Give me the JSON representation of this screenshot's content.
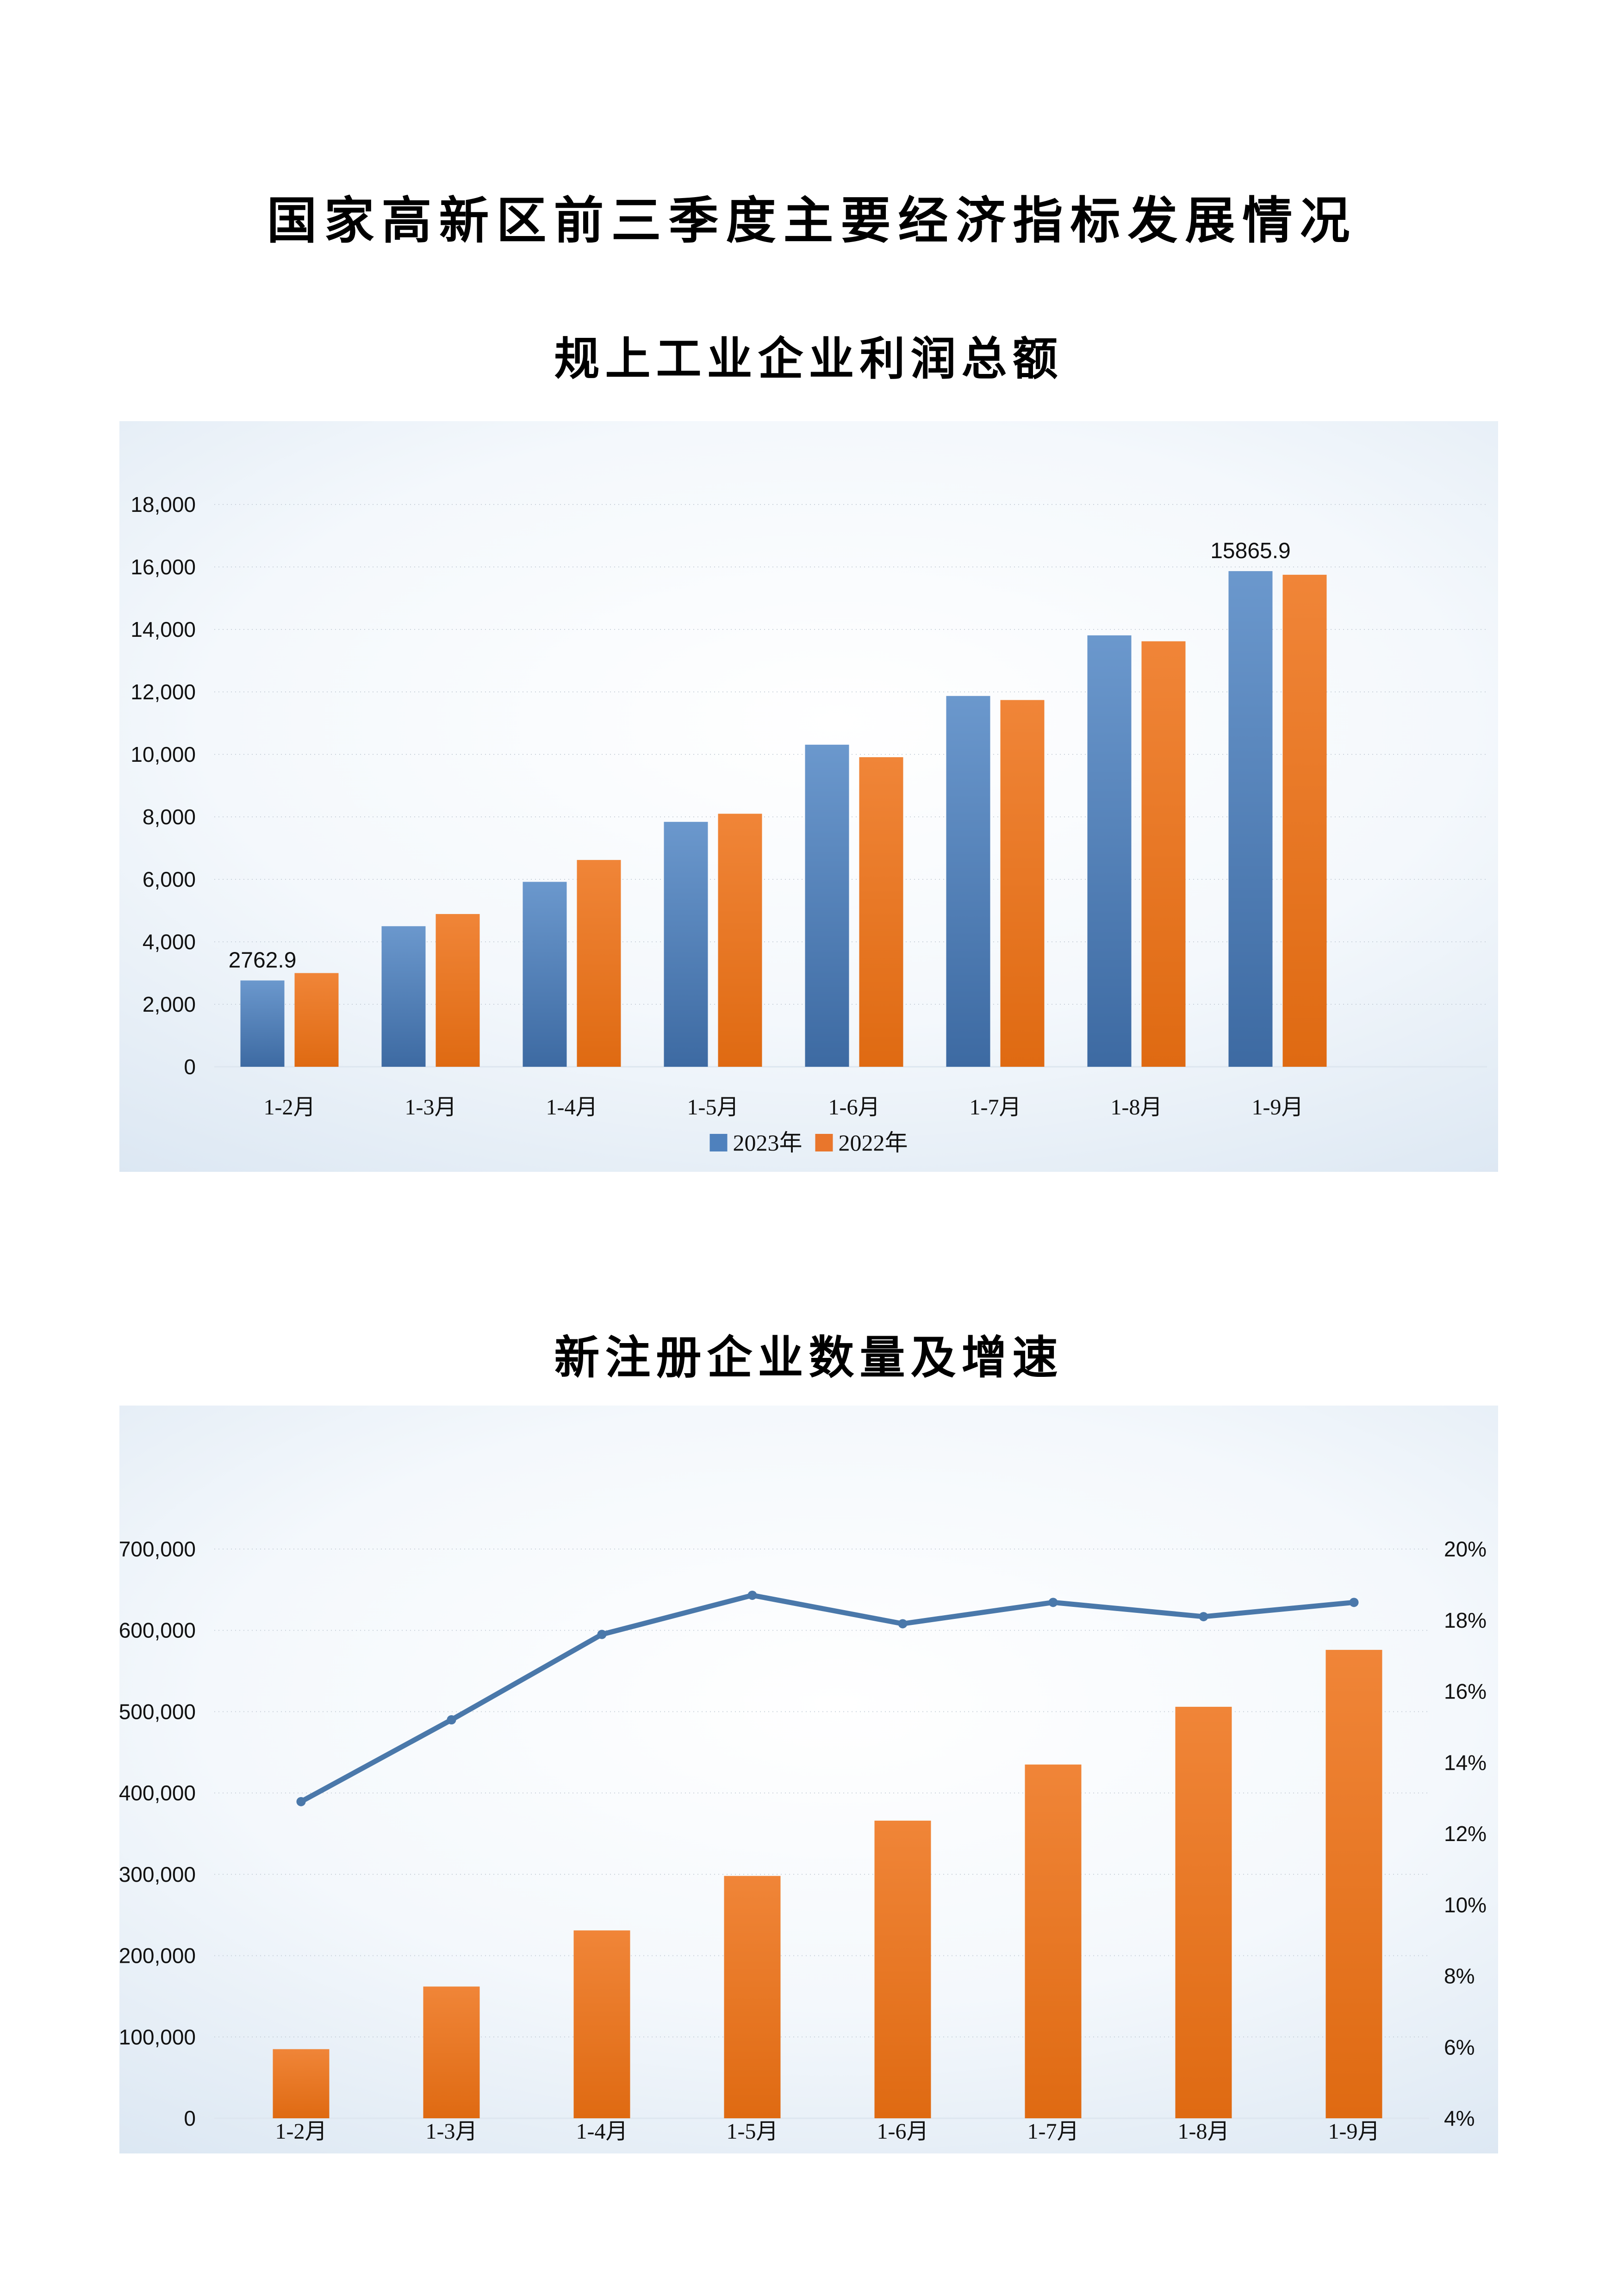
{
  "page": {
    "title": "国家高新区前三季度主要经济指标发展情况"
  },
  "chart_data": [
    {
      "type": "bar",
      "title": "规上工业企业利润总额",
      "categories": [
        "1-2月",
        "1-3月",
        "1-4月",
        "1-5月",
        "1-6月",
        "1-7月",
        "1-8月",
        "1-9月"
      ],
      "series": [
        {
          "name": "2023年",
          "values": [
            2762.9,
            4500,
            5920,
            7840,
            10310,
            11870,
            13810,
            15865.9
          ],
          "color": "#4f81bd",
          "bar_gradient": [
            "#6b98cd",
            "#3d6aa2"
          ]
        },
        {
          "name": "2022年",
          "values": [
            3000,
            4890,
            6620,
            8100,
            9910,
            11740,
            13620,
            15750
          ],
          "color": "#e9762c",
          "bar_gradient": [
            "#f08538",
            "#df6a12"
          ]
        }
      ],
      "data_labels": [
        {
          "series": 0,
          "index": 0,
          "text": "2762.9"
        },
        {
          "series": 0,
          "index": 7,
          "text": "15865.9"
        }
      ],
      "ylim": [
        0,
        18000
      ],
      "ytick_step": 2000,
      "grid": true,
      "legend_position": "bottom"
    },
    {
      "type": "bar+line",
      "title": "新注册企业数量及增速",
      "categories": [
        "1-2月",
        "1-3月",
        "1-4月",
        "1-5月",
        "1-6月",
        "1-7月",
        "1-8月",
        "1-9月"
      ],
      "bar_series": {
        "axis": "left",
        "values": [
          85000,
          162000,
          231000,
          298000,
          366000,
          435000,
          506000,
          576000
        ],
        "color": "#e9762c",
        "bar_gradient": [
          "#f08538",
          "#df6a12"
        ]
      },
      "line_series": {
        "axis": "right",
        "values_percent": [
          12.9,
          15.2,
          17.6,
          18.7,
          17.9,
          18.5,
          18.1,
          18.5
        ],
        "color": "#4a78aa"
      },
      "left_axis": {
        "min": 0,
        "max": 700000,
        "step": 100000
      },
      "right_axis": {
        "min": 4,
        "max": 20,
        "step": 2,
        "unit": "%"
      },
      "grid": true,
      "colors": {
        "gridline": "#c3ccd6",
        "axisline": "#dde6ef"
      }
    }
  ]
}
